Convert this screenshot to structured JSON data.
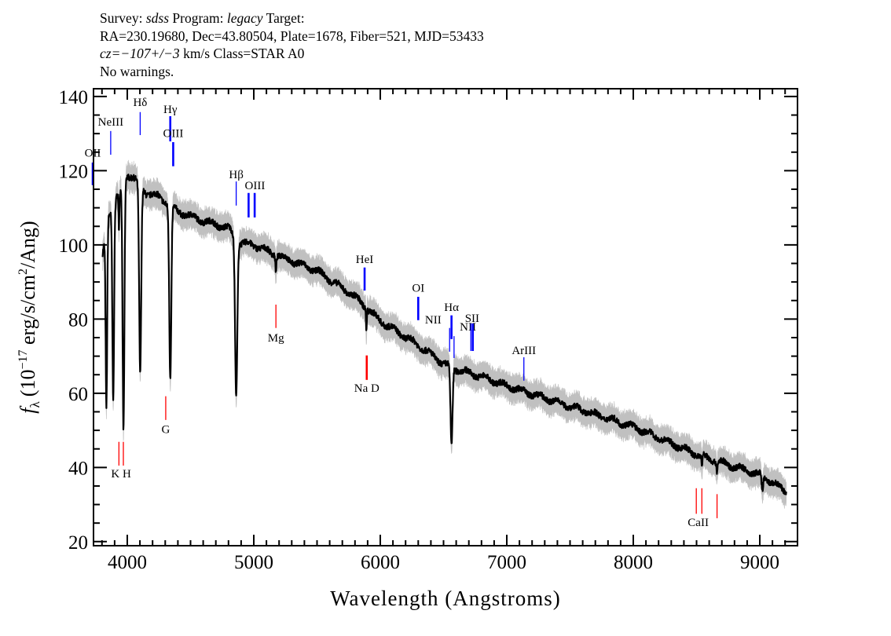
{
  "header": {
    "survey_label": "Survey:",
    "survey": "sdss",
    "program_label": "Program:",
    "program": "legacy",
    "target_label": "Target:",
    "line2": "RA=230.19680, Dec=43.80504, Plate=1678, Fiber=521, MJD=53433",
    "cz": "cz=−107+/−3",
    "class_text": "km/s Class=STAR A0",
    "warnings": "No warnings."
  },
  "chart_data": {
    "type": "line",
    "title": "",
    "xlabel": "Wavelength (Angstroms)",
    "ylabel": "fλ (10⁻¹⁷ erg/s/cm²/Ang)",
    "ylabel_parts": {
      "symbol": "f",
      "sub": "λ",
      "pre": "(10",
      "exp1": "−17",
      "mid": " erg/s/cm",
      "exp2": "2",
      "post": "/Ang)"
    },
    "xlim": [
      3733,
      9298
    ],
    "ylim": [
      18.9,
      142.1
    ],
    "xticks": [
      4000,
      5000,
      6000,
      7000,
      8000,
      9000
    ],
    "xtick_labels": [
      "4000",
      "5000",
      "6000",
      "7000",
      "8000",
      "9000"
    ],
    "yticks": [
      20,
      40,
      60,
      80,
      100,
      120,
      140
    ],
    "ytick_labels": [
      "20",
      "40",
      "60",
      "80",
      "100",
      "120",
      "140"
    ],
    "x_minor_step": 100,
    "y_minor_step": 5,
    "grid": false,
    "wavelength_range": [
      3805,
      9210
    ],
    "continuum": [
      [
        3805,
        97
      ],
      [
        3850,
        108
      ],
      [
        3900,
        112
      ],
      [
        3950,
        114
      ],
      [
        4000,
        119
      ],
      [
        4050,
        118
      ],
      [
        4150,
        114
      ],
      [
        4250,
        113
      ],
      [
        4400,
        109
      ],
      [
        4600,
        106.5
      ],
      [
        4800,
        104.5
      ],
      [
        4900,
        100.5
      ],
      [
        5000,
        100
      ],
      [
        5200,
        97
      ],
      [
        5500,
        93
      ],
      [
        5800,
        86
      ],
      [
        6000,
        79.5
      ],
      [
        6300,
        73
      ],
      [
        6500,
        68
      ],
      [
        6600,
        66.5
      ],
      [
        6800,
        64.5
      ],
      [
        7000,
        62
      ],
      [
        7500,
        56.5
      ],
      [
        8000,
        51
      ],
      [
        8500,
        43.5
      ],
      [
        9000,
        38
      ],
      [
        9210,
        33.5
      ]
    ],
    "absorption_lines": [
      {
        "wavelength": 3835,
        "depth": 48,
        "width": 6
      },
      {
        "wavelength": 3889,
        "depth": 52,
        "width": 7
      },
      {
        "wavelength": 3934,
        "depth": 10,
        "width": 3
      },
      {
        "wavelength": 3970,
        "depth": 66,
        "width": 7
      },
      {
        "wavelength": 4102,
        "depth": 51,
        "width": 8
      },
      {
        "wavelength": 4340,
        "depth": 47,
        "width": 8
      },
      {
        "wavelength": 4861,
        "depth": 42,
        "width": 9
      },
      {
        "wavelength": 5175,
        "depth": 4,
        "width": 4
      },
      {
        "wavelength": 5890,
        "depth": 6,
        "width": 3
      },
      {
        "wavelength": 6563,
        "depth": 21,
        "width": 8
      },
      {
        "wavelength": 8542,
        "depth": 3,
        "width": 4
      },
      {
        "wavelength": 8662,
        "depth": 3,
        "width": 4
      },
      {
        "wavelength": 9020,
        "depth": 4,
        "width": 6
      }
    ],
    "error_band": 2.5,
    "line_color": "#000000",
    "error_color": "#c0c0c0",
    "emission_marker_color": "#0000ff",
    "absorption_marker_color": "#ff0000",
    "line_markers": [
      {
        "label": "OII",
        "wavelength": 3727,
        "y": [
          116.1,
          122.2
        ],
        "label_y": 124.8,
        "color": "#0000ff",
        "thick": true
      },
      {
        "label": "NeIII",
        "wavelength": 3869,
        "y": [
          124.3,
          130.7
        ],
        "label_y": 133.2,
        "color": "#0000ff",
        "thick": false
      },
      {
        "label": "Hδ",
        "wavelength": 4102,
        "y": [
          129.6,
          135.8
        ],
        "label_y": 138.5,
        "color": "#0000ff",
        "thick": false
      },
      {
        "label": "Hγ",
        "wavelength": 4340,
        "y": [
          127.9,
          134.7
        ],
        "label_y": 136.6,
        "color": "#0000ff",
        "thick": true
      },
      {
        "label": "OIII",
        "wavelength": 4363,
        "y": [
          121.2,
          127.7
        ],
        "label_y": 130.1,
        "color": "#0000ff",
        "thick": true
      },
      {
        "label": "Hβ",
        "wavelength": 4861,
        "y": [
          110.6,
          117.1
        ],
        "label_y": 119.0,
        "color": "#0000ff",
        "thick": false
      },
      {
        "label": "OIII",
        "wavelength": 4959,
        "y": [
          107.4,
          114.0
        ],
        "label_y": 116.1,
        "color": "#0000ff",
        "thick": true,
        "label_offset": 50
      },
      {
        "label": "",
        "wavelength": 5007,
        "y": [
          107.4,
          114.0
        ],
        "label_y": 116.1,
        "color": "#0000ff",
        "thick": true
      },
      {
        "label": "HeI",
        "wavelength": 5876,
        "y": [
          87.7,
          93.9
        ],
        "label_y": 96.2,
        "color": "#0000ff",
        "thick": true
      },
      {
        "label": "OI",
        "wavelength": 6300,
        "y": [
          79.7,
          86.0
        ],
        "label_y": 88.4,
        "color": "#0000ff",
        "thick": true
      },
      {
        "label": "NII",
        "wavelength": 6548,
        "y": [
          71.2,
          77.6
        ],
        "label_y": 79.9,
        "color": "#0000ff",
        "thick": false,
        "label_offset": -130
      },
      {
        "label": "Hα",
        "wavelength": 6563,
        "y": [
          74.6,
          81.0
        ],
        "label_y": 83.3,
        "color": "#0000ff",
        "thick": true
      },
      {
        "label": "NII",
        "wavelength": 6583,
        "y": [
          69.5,
          75.4
        ],
        "label_y": 78.0,
        "color": "#0000ff",
        "thick": false,
        "label_offset": 110
      },
      {
        "label": "SII",
        "wavelength": 6716,
        "y": [
          71.4,
          78.8
        ],
        "label_y": 80.3,
        "color": "#0000ff",
        "thick": false,
        "label_offset": 10
      },
      {
        "label": "",
        "wavelength": 6731,
        "y": [
          71.4,
          78.8
        ],
        "label_y": 80.3,
        "color": "#0000ff",
        "thick": true
      },
      {
        "label": "ArIII",
        "wavelength": 7135,
        "y": [
          63.4,
          69.7
        ],
        "label_y": 71.6,
        "color": "#0000ff",
        "thick": false
      },
      {
        "label": "K H",
        "wavelength": 3934,
        "y": [
          40.5,
          46.9
        ],
        "label_y": 38.4,
        "color": "#ff0000",
        "thick": false,
        "label_offset": 17
      },
      {
        "label": "",
        "wavelength": 3969,
        "y": [
          40.5,
          46.9
        ],
        "label_y": 38.4,
        "color": "#ff0000",
        "thick": false
      },
      {
        "label": "G",
        "wavelength": 4304,
        "y": [
          52.8,
          59.2
        ],
        "label_y": 50.3,
        "color": "#ff0000",
        "thick": false
      },
      {
        "label": "Mg",
        "wavelength": 5175,
        "y": [
          77.6,
          83.9
        ],
        "label_y": 75.0,
        "color": "#ff0000",
        "thick": false
      },
      {
        "label": "Na  D",
        "wavelength": 5893,
        "y": [
          63.6,
          70.2
        ],
        "label_y": 61.5,
        "color": "#ff0000",
        "thick": true
      },
      {
        "label": "CaII",
        "wavelength": 8498,
        "y": [
          27.5,
          34.4
        ],
        "label_y": 25.3,
        "color": "#ff0000",
        "thick": false,
        "label_offset": 15
      },
      {
        "label": "",
        "wavelength": 8542,
        "y": [
          27.5,
          34.4
        ],
        "label_y": 25.3,
        "color": "#ff0000",
        "thick": false
      },
      {
        "label": "",
        "wavelength": 8662,
        "y": [
          26.3,
          32.8
        ],
        "label_y": 25.3,
        "color": "#ff0000",
        "thick": false
      }
    ]
  }
}
